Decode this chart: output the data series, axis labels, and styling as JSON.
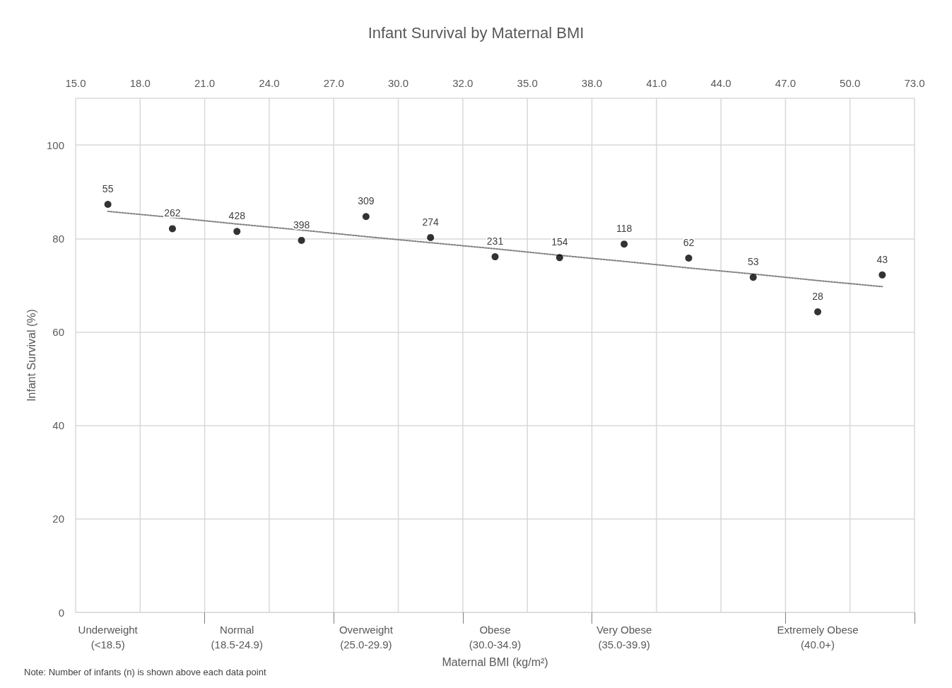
{
  "chart_data": {
    "type": "scatter",
    "title": "Infant Survival by Maternal BMI",
    "xlabel": "Maternal BMI (kg/m²)",
    "ylabel": "Infant Survival (%)",
    "categories": [
      "Underweight\n(<18.5)",
      null,
      "Normal\n(18.5-24.9)",
      null,
      "Overweight\n(25.0-29.9)",
      null,
      "Obese\n(30.0-34.9)",
      null,
      "Very Obese\n(35.0-39.9)",
      null,
      null,
      "Extremely Obese\n(40.0+)",
      null
    ],
    "annotations": [
      "Note: Number of infants (n) is shown above each data point",
      "15.0",
      "18.0",
      "21.0",
      "24.0",
      "27.0",
      "30.0",
      "32.0",
      "35.0",
      "38.0",
      "41.0",
      "44.0",
      "47.0",
      "50.0",
      "73.0",
      {
        "text": "55",
        "y": 87.3
      },
      {
        "text": "262",
        "y": 82.1
      },
      {
        "text": "428",
        "y": 81.5
      },
      {
        "text": "398",
        "y": 79.6
      },
      {
        "text": "309",
        "y": 84.7
      },
      {
        "text": "274",
        "y": 80.2
      },
      {
        "text": "231",
        "y": 76.1
      },
      {
        "text": "154",
        "y": 75.9
      },
      {
        "text": "118",
        "y": 78.8
      },
      {
        "text": "62",
        "y": 75.8
      },
      {
        "text": "53",
        "y": 71.7
      },
      {
        "text": "28",
        "y": 64.3
      },
      {
        "text": "43",
        "y": 72.2
      }
    ],
    "ylim": [
      0,
      110
    ],
    "yticks": [
      0,
      20,
      40,
      60,
      80,
      100
    ],
    "grid": true,
    "marker": "circle",
    "series": [
      {
        "color": "#000000",
        "values": [
          87.3,
          82.1,
          81.5,
          79.6,
          84.7,
          80.2,
          76.1,
          75.9,
          78.8,
          75.8,
          71.7,
          64.3,
          72.2
        ]
      },
      {
        "type": "line",
        "color": "#7f7f7f",
        "line_style": "dotted",
        "marker": "none",
        "values": [
          85.8,
          84.5,
          83.1,
          81.8,
          80.4,
          79.1,
          77.8,
          76.4,
          75.1,
          73.7,
          72.4,
          71.0,
          69.7
        ]
      }
    ]
  }
}
